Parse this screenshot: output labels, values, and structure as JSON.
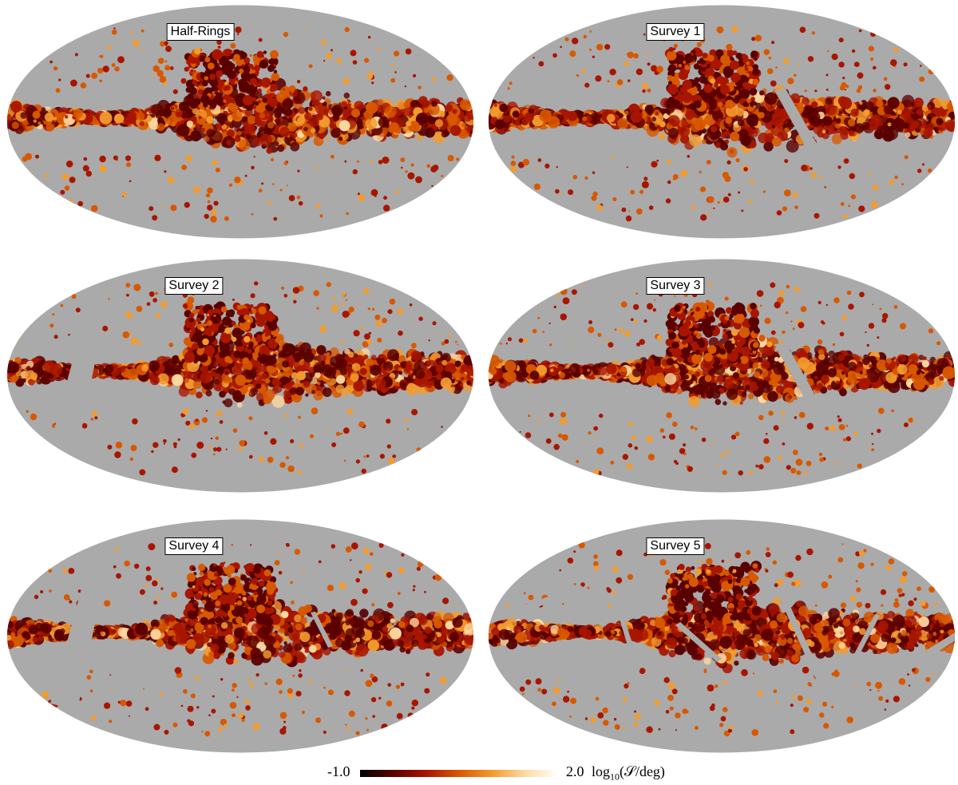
{
  "panels": [
    {
      "label": "Half-Rings",
      "gaps": []
    },
    {
      "label": "Survey 1",
      "gaps": [
        {
          "kind": "diagonal",
          "strength": "mid"
        }
      ]
    },
    {
      "label": "Survey 2",
      "gaps": [
        {
          "kind": "wide-left",
          "strength": "strong"
        }
      ]
    },
    {
      "label": "Survey 3",
      "gaps": [
        {
          "kind": "diagonal",
          "strength": "mid"
        }
      ]
    },
    {
      "label": "Survey 4",
      "gaps": [
        {
          "kind": "wide-left",
          "strength": "strong"
        },
        {
          "kind": "thin-right",
          "strength": "weak"
        }
      ]
    },
    {
      "label": "Survey 5",
      "gaps": [
        {
          "kind": "multi",
          "strength": "mid"
        }
      ]
    }
  ],
  "colorbar": {
    "min_label": "-1.0",
    "max_label": "2.0",
    "unit_prefix": "log",
    "unit_sub": "10",
    "unit_suffix": "(𝒮/deg)",
    "colors": [
      "#000000",
      "#5a0000",
      "#a81500",
      "#d85800",
      "#f29b2e",
      "#fdd9a0",
      "#ffffff"
    ]
  },
  "colors": {
    "masked": "#aaaaaa",
    "background": "#ffffff"
  }
}
